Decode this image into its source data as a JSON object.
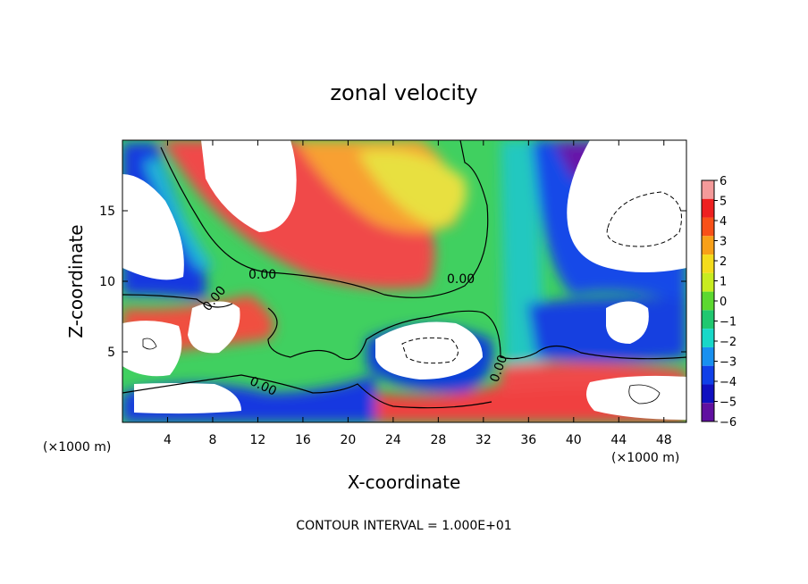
{
  "chart_data": {
    "type": "heatmap",
    "title": "zonal velocity",
    "xlabel": "X-coordinate",
    "ylabel": "Z-coordinate",
    "x_unit": "(×1000 m)",
    "z_unit": "(×1000 m)",
    "xlim": [
      0,
      50
    ],
    "ylim": [
      0,
      20
    ],
    "x_ticks": [
      4,
      8,
      12,
      16,
      20,
      24,
      28,
      32,
      36,
      40,
      44,
      48
    ],
    "y_ticks": [
      5,
      10,
      15
    ],
    "x_tick_labels": [
      "4",
      "8",
      "12",
      "16",
      "20",
      "24",
      "28",
      "32",
      "36",
      "40",
      "44",
      "48"
    ],
    "y_tick_labels": [
      "5",
      "10",
      "15"
    ],
    "colorbar": {
      "levels": [
        -6,
        -5,
        -4,
        -3,
        -2,
        -1,
        0,
        1,
        2,
        3,
        4,
        5,
        6
      ],
      "labels": [
        "6",
        "5",
        "4",
        "3",
        "2",
        "1",
        "0",
        "−1",
        "−2",
        "−3",
        "−4",
        "−5",
        "−6"
      ],
      "colors": [
        "#f49a9a",
        "#ee2020",
        "#f85018",
        "#f8a018",
        "#f4dc1c",
        "#c8ec20",
        "#5cd830",
        "#20c870",
        "#18d8c8",
        "#1890f0",
        "#1040e8",
        "#1010c0",
        "#6010a0"
      ]
    },
    "contour_labels": [
      "0.00",
      "0.00",
      "0.00",
      "0.00",
      "0.00"
    ],
    "contour_interval_text": "CONTOUR INTERVAL = 1.000E+01"
  }
}
